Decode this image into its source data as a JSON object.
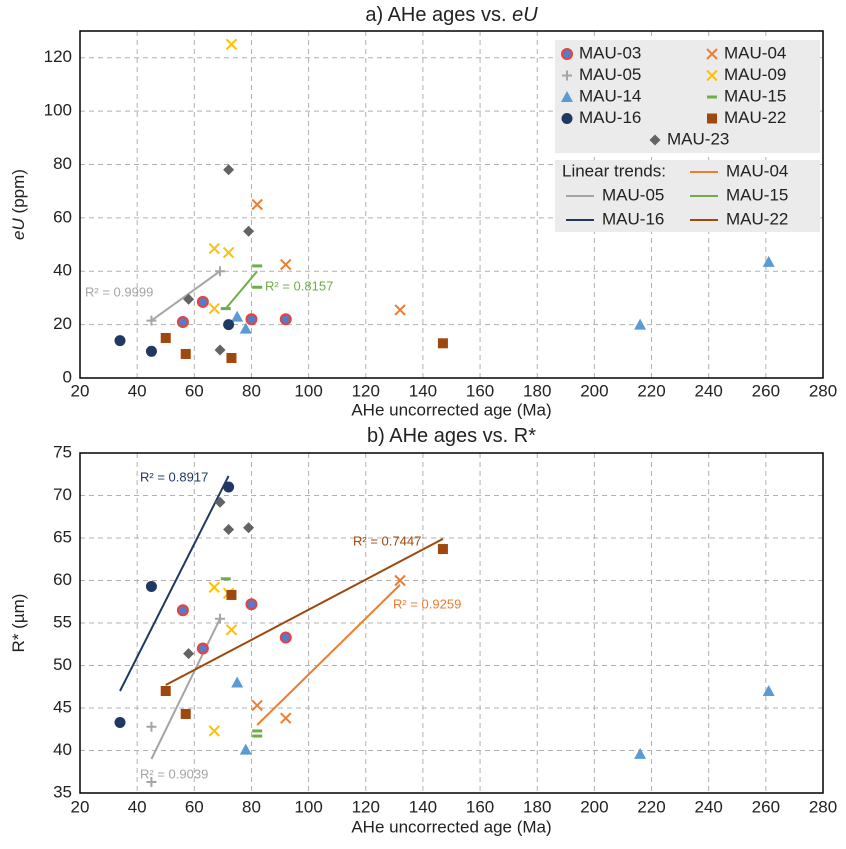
{
  "chart_data": [
    {
      "type": "scatter",
      "title": "a) AHe ages vs. ",
      "title_italic": "eU",
      "x_label": "AHe uncorrected age (Ma)",
      "y_label": "(ppm)",
      "y_label_italic": "eU",
      "xlim": [
        20,
        280
      ],
      "xticks": [
        20,
        40,
        60,
        80,
        100,
        120,
        140,
        160,
        180,
        200,
        220,
        240,
        260,
        280
      ],
      "ylim": [
        0,
        130
      ],
      "yticks": [
        0,
        20,
        40,
        60,
        80,
        100,
        120
      ],
      "grid": true,
      "legend_corner": "upper right",
      "series": [
        {
          "name": "MAU-03",
          "marker": "ring",
          "color": "#5b79c9",
          "edge_color": "#e8423a",
          "x": [
            56,
            63,
            80,
            92
          ],
          "values": [
            21,
            28.5,
            22,
            22
          ]
        },
        {
          "name": "MAU-04",
          "marker": "x",
          "color": "#ed7d31",
          "x": [
            82,
            92,
            132
          ],
          "values": [
            65,
            42.5,
            25.5
          ]
        },
        {
          "name": "MAU-05",
          "marker": "plus",
          "color": "#a5a5a5",
          "x": [
            45,
            69
          ],
          "values": [
            21.5,
            40
          ]
        },
        {
          "name": "MAU-09",
          "marker": "x",
          "color": "#ffc000",
          "x": [
            67,
            72,
            73,
            67
          ],
          "values": [
            48.5,
            47,
            125,
            26
          ]
        },
        {
          "name": "MAU-14",
          "marker": "triangle",
          "color": "#5b9bd5",
          "x": [
            75,
            78,
            216,
            261
          ],
          "values": [
            23,
            18.5,
            20,
            43.5
          ]
        },
        {
          "name": "MAU-15",
          "marker": "dash",
          "color": "#70ad47",
          "x": [
            82,
            82,
            71
          ],
          "values": [
            42,
            34,
            26
          ]
        },
        {
          "name": "MAU-16",
          "marker": "circle",
          "color": "#203864",
          "x": [
            34,
            45,
            72
          ],
          "values": [
            14,
            10,
            20
          ]
        },
        {
          "name": "MAU-22",
          "marker": "square",
          "color": "#9e480e",
          "x": [
            50,
            57,
            73,
            147
          ],
          "values": [
            15,
            9,
            7.5,
            13
          ]
        },
        {
          "name": "MAU-23",
          "marker": "diamond",
          "color": "#636363",
          "x": [
            72,
            79,
            58,
            69
          ],
          "values": [
            78,
            55,
            29.5,
            10.5
          ]
        }
      ],
      "trend_title": "Linear trends:",
      "legend_trends": [
        {
          "name": "MAU-04",
          "color": "#ed7d31"
        },
        {
          "name": "MAU-05",
          "color": "#a5a5a5"
        },
        {
          "name": "MAU-15",
          "color": "#70ad47"
        },
        {
          "name": "MAU-16",
          "color": "#203864"
        },
        {
          "name": "MAU-22",
          "color": "#9e480e"
        }
      ],
      "trends": [
        {
          "color": "#a5a5a5",
          "x": [
            45,
            69
          ],
          "values": [
            21.5,
            40
          ],
          "label": "R² = 0.9999"
        },
        {
          "color": "#70ad47",
          "x": [
            71,
            82
          ],
          "values": [
            26,
            40
          ],
          "label": "R² = 0.8157"
        }
      ]
    },
    {
      "type": "scatter",
      "title": "b) AHe ages vs. R*",
      "x_label": "AHe uncorrected  age (Ma)",
      "y_label": "R* (µm)",
      "xlim": [
        20,
        280
      ],
      "xticks": [
        20,
        40,
        60,
        80,
        100,
        120,
        140,
        160,
        180,
        200,
        220,
        240,
        260,
        280
      ],
      "ylim": [
        35,
        75
      ],
      "yticks": [
        35,
        40,
        45,
        50,
        55,
        60,
        65,
        70,
        75
      ],
      "grid": true,
      "series": [
        {
          "name": "MAU-03",
          "marker": "ring",
          "color": "#5b79c9",
          "edge_color": "#e8423a",
          "x": [
            56,
            63,
            80,
            92
          ],
          "values": [
            56.5,
            52,
            57.2,
            53.3
          ]
        },
        {
          "name": "MAU-04",
          "marker": "x",
          "color": "#ed7d31",
          "x": [
            82,
            92,
            132
          ],
          "values": [
            45.3,
            43.8,
            60
          ]
        },
        {
          "name": "MAU-05",
          "marker": "plus",
          "color": "#a5a5a5",
          "x": [
            45,
            45,
            69
          ],
          "values": [
            42.8,
            36.3,
            55.5
          ]
        },
        {
          "name": "MAU-09",
          "marker": "x",
          "color": "#ffc000",
          "x": [
            67,
            72,
            73,
            67
          ],
          "values": [
            59.2,
            58.5,
            54.2,
            42.3
          ]
        },
        {
          "name": "MAU-14",
          "marker": "triangle",
          "color": "#5b9bd5",
          "x": [
            75,
            78,
            216,
            261
          ],
          "values": [
            48,
            40.1,
            39.6,
            47
          ]
        },
        {
          "name": "MAU-15",
          "marker": "dash",
          "color": "#70ad47",
          "x": [
            71,
            82,
            82
          ],
          "values": [
            60.2,
            42.3,
            41.7
          ]
        },
        {
          "name": "MAU-16",
          "marker": "circle",
          "color": "#203864",
          "x": [
            34,
            45,
            72
          ],
          "values": [
            43.3,
            59.3,
            71
          ]
        },
        {
          "name": "MAU-22",
          "marker": "square",
          "color": "#9e480e",
          "x": [
            50,
            57,
            73,
            147
          ],
          "values": [
            47,
            44.3,
            58.3,
            63.7
          ]
        },
        {
          "name": "MAU-23",
          "marker": "diamond",
          "color": "#636363",
          "x": [
            69,
            72,
            79,
            58
          ],
          "values": [
            69.2,
            66,
            66.2,
            51.4
          ]
        }
      ],
      "trends": [
        {
          "color": "#203864",
          "x": [
            34,
            72
          ],
          "values": [
            47,
            72.3
          ],
          "label": "R² = 0.8917"
        },
        {
          "color": "#a5a5a5",
          "x": [
            45,
            69
          ],
          "values": [
            39,
            55.5
          ],
          "label": "R² = 0.9039"
        },
        {
          "color": "#9e480e",
          "x": [
            50,
            147
          ],
          "values": [
            47.7,
            64.9
          ],
          "label": "R² = 0.7447"
        },
        {
          "color": "#ed7d31",
          "x": [
            82,
            132
          ],
          "values": [
            43,
            59.5
          ],
          "label": "R² = 0.9259"
        }
      ]
    }
  ]
}
